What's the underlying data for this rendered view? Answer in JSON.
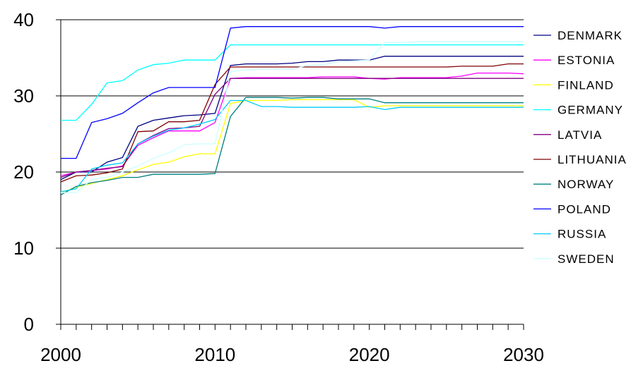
{
  "chart_data": {
    "type": "line",
    "title": "",
    "xlabel": "",
    "ylabel": "",
    "xlim": [
      2000,
      2030
    ],
    "ylim": [
      0,
      40
    ],
    "x_ticks": [
      2000,
      2010,
      2020,
      2030
    ],
    "y_ticks": [
      0,
      10,
      20,
      30,
      40
    ],
    "grid": "horizontal major gridlines",
    "legend_position": "right",
    "x": [
      2000,
      2001,
      2002,
      2003,
      2004,
      2005,
      2006,
      2007,
      2008,
      2009,
      2010,
      2011,
      2012,
      2013,
      2014,
      2015,
      2016,
      2017,
      2018,
      2019,
      2020,
      2021,
      2022,
      2023,
      2024,
      2025,
      2026,
      2027,
      2028,
      2029,
      2030
    ],
    "series": [
      {
        "name": "DENMARK",
        "color": "#000080",
        "values": [
          19.0,
          20.0,
          20.0,
          21.3,
          21.9,
          26.0,
          26.8,
          27.1,
          27.4,
          27.5,
          27.7,
          34.0,
          34.2,
          34.2,
          34.2,
          34.3,
          34.5,
          34.5,
          34.7,
          34.7,
          34.7,
          35.2,
          35.2,
          35.2,
          35.2,
          35.2,
          35.2,
          35.2,
          35.2,
          35.2,
          35.2
        ]
      },
      {
        "name": "ESTONIA",
        "color": "#FF00FF",
        "values": [
          19.5,
          20.0,
          20.2,
          20.4,
          20.8,
          23.5,
          24.5,
          25.4,
          25.4,
          25.4,
          26.5,
          32.3,
          32.4,
          32.4,
          32.4,
          32.4,
          32.4,
          32.5,
          32.5,
          32.5,
          32.3,
          32.2,
          32.4,
          32.4,
          32.4,
          32.4,
          32.6,
          33.0,
          33.0,
          33.0,
          32.9
        ]
      },
      {
        "name": "FINLAND",
        "color": "#FFFF00",
        "values": [
          17.3,
          18.0,
          18.5,
          19.0,
          19.5,
          20.3,
          21.0,
          21.3,
          22.0,
          22.4,
          22.4,
          29.0,
          29.4,
          29.4,
          29.4,
          29.5,
          29.5,
          29.5,
          29.5,
          29.5,
          28.5,
          28.7,
          28.7,
          28.7,
          28.7,
          28.7,
          28.7,
          28.7,
          28.7,
          28.7,
          28.7
        ]
      },
      {
        "name": "GERMANY",
        "color": "#00FFFF",
        "values": [
          26.8,
          26.8,
          28.9,
          31.7,
          32.0,
          33.4,
          34.1,
          34.3,
          34.7,
          34.7,
          34.7,
          36.7,
          36.7,
          36.7,
          36.7,
          36.7,
          36.7,
          36.7,
          36.7,
          36.7,
          36.7,
          36.7,
          36.7,
          36.7,
          36.7,
          36.7,
          36.7,
          36.7,
          36.7,
          36.7,
          36.7
        ]
      },
      {
        "name": "LATVIA",
        "color": "#800080",
        "values": [
          19.3,
          20.0,
          20.2,
          20.5,
          20.7,
          23.7,
          24.8,
          25.7,
          25.8,
          26.0,
          30.2,
          32.3,
          32.3,
          32.3,
          32.3,
          32.3,
          32.3,
          32.3,
          32.3,
          32.3,
          32.3,
          32.3,
          32.3,
          32.3,
          32.3,
          32.3,
          32.3,
          32.3,
          32.3,
          32.3,
          32.3
        ]
      },
      {
        "name": "LITHUANIA",
        "color": "#800000",
        "values": [
          18.7,
          19.5,
          19.6,
          19.9,
          20.4,
          25.3,
          25.4,
          26.6,
          26.6,
          26.8,
          31.5,
          33.8,
          33.8,
          33.8,
          33.8,
          33.8,
          33.8,
          33.8,
          33.8,
          33.8,
          33.8,
          33.8,
          33.8,
          33.8,
          33.8,
          33.8,
          33.9,
          33.9,
          33.9,
          34.2,
          34.2
        ]
      },
      {
        "name": "NORWAY",
        "color": "#008080",
        "values": [
          17.0,
          18.1,
          18.6,
          18.9,
          19.3,
          19.3,
          19.7,
          19.7,
          19.7,
          19.7,
          19.8,
          27.3,
          29.8,
          29.8,
          29.8,
          29.7,
          29.8,
          29.8,
          29.6,
          29.6,
          29.6,
          29.1,
          29.1,
          29.1,
          29.1,
          29.1,
          29.1,
          29.1,
          29.1,
          29.1,
          29.1
        ]
      },
      {
        "name": "POLAND",
        "color": "#0000FF",
        "values": [
          21.8,
          21.8,
          26.5,
          27.0,
          27.7,
          29.1,
          30.4,
          31.1,
          31.1,
          31.1,
          31.1,
          38.9,
          39.1,
          39.1,
          39.1,
          39.1,
          39.1,
          39.1,
          39.1,
          39.1,
          39.1,
          38.9,
          39.1,
          39.1,
          39.1,
          39.1,
          39.1,
          39.1,
          39.1,
          39.1,
          39.1
        ]
      },
      {
        "name": "RUSSIA",
        "color": "#00CCFF",
        "values": [
          17.4,
          17.8,
          20.4,
          20.9,
          21.2,
          23.7,
          24.7,
          25.5,
          25.8,
          26.3,
          26.9,
          29.4,
          29.4,
          28.6,
          28.6,
          28.5,
          28.5,
          28.5,
          28.5,
          28.5,
          28.6,
          28.2,
          28.5,
          28.5,
          28.5,
          28.5,
          28.5,
          28.5,
          28.5,
          28.5,
          28.5
        ]
      },
      {
        "name": "SWEDEN",
        "color": "#CCFFFF",
        "values": [
          17.3,
          17.3,
          19.0,
          19.3,
          20.0,
          20.8,
          21.8,
          22.5,
          23.6,
          23.7,
          23.7,
          33.2,
          33.4,
          33.5,
          33.5,
          33.5,
          34.0,
          34.1,
          34.5,
          34.6,
          34.7,
          37.0,
          37.0,
          37.1,
          37.1,
          37.1,
          37.1,
          37.1,
          37.1,
          37.1,
          37.1
        ]
      }
    ]
  }
}
